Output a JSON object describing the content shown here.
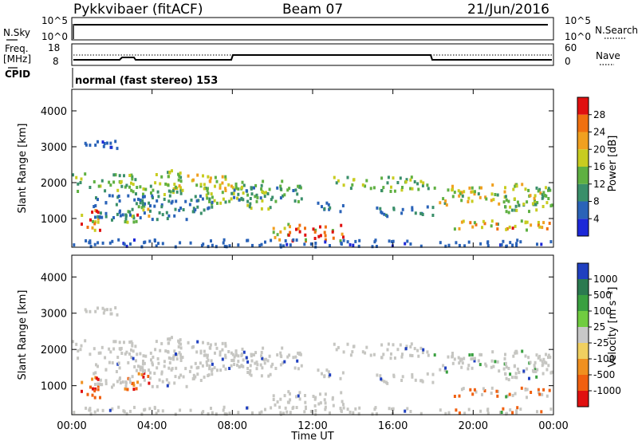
{
  "header": {
    "radar": "Pykkvibaer (fitACF)",
    "beam": "Beam 07",
    "date": "21/Jun/2016"
  },
  "top_panels": {
    "nsky_label": "N.Sky",
    "nsearch_label": "N.Search",
    "noise_ticks_left": [
      "10^5",
      "10^0"
    ],
    "noise_ticks_right": [
      "10^5",
      "10^0"
    ],
    "freq_label_1": "Freq.",
    "freq_label_2": "[MHz]",
    "freq_ticks": [
      "18",
      "8"
    ],
    "nave_label": "Nave",
    "nave_ticks": [
      "60",
      "0"
    ],
    "cpid_label": "CPID",
    "cpid_text": "normal (fast stereo) 153"
  },
  "chart_data": [
    {
      "type": "heatmap",
      "name": "power-panel",
      "ylabel": "Slant Range [km]",
      "ytick_labels": [
        "1000",
        "2000",
        "3000",
        "4000"
      ],
      "yticks": [
        1000,
        2000,
        3000,
        4000
      ],
      "ylim": [
        200,
        4600
      ],
      "xlim": [
        0,
        24
      ],
      "colorbar_label": "Power [dB]",
      "colorbar_ticks": [
        "4",
        "8",
        "12",
        "16",
        "20",
        "24",
        "28"
      ],
      "colorbar_values": [
        4,
        8,
        12,
        16,
        20,
        24,
        28
      ],
      "colorbar_range": [
        0,
        30
      ],
      "colors": [
        "#1c28d8",
        "#2a63b8",
        "#3a8f6a",
        "#5fb042",
        "#c8cc20",
        "#f0a020",
        "#f07010",
        "#e01010"
      ]
    },
    {
      "type": "heatmap",
      "name": "velocity-panel",
      "ylabel": "Slant Range [km]",
      "ytick_labels": [
        "1000",
        "2000",
        "3000",
        "4000"
      ],
      "yticks": [
        1000,
        2000,
        3000,
        4000
      ],
      "ylim": [
        200,
        4600
      ],
      "xlim": [
        0,
        24
      ],
      "colorbar_label": "Velocity [m s⁻¹]",
      "colorbar_ticks": [
        "1000",
        "500",
        "100",
        "25",
        "-25",
        "-100",
        "-500",
        "-1000"
      ],
      "colors": [
        "#2040c0",
        "#2b7a50",
        "#3aa040",
        "#70cc40",
        "#c8c8c8",
        "#f0d060",
        "#f09020",
        "#f06010",
        "#e01010"
      ],
      "ground_scatter_color": "#c6c6c2"
    }
  ],
  "time_axis": {
    "xlabel": "Time UT",
    "tick_labels": [
      "00:00",
      "04:00",
      "08:00",
      "12:00",
      "16:00",
      "20:00",
      "00:00"
    ],
    "ticks": [
      0,
      4,
      8,
      12,
      16,
      20,
      24
    ]
  }
}
